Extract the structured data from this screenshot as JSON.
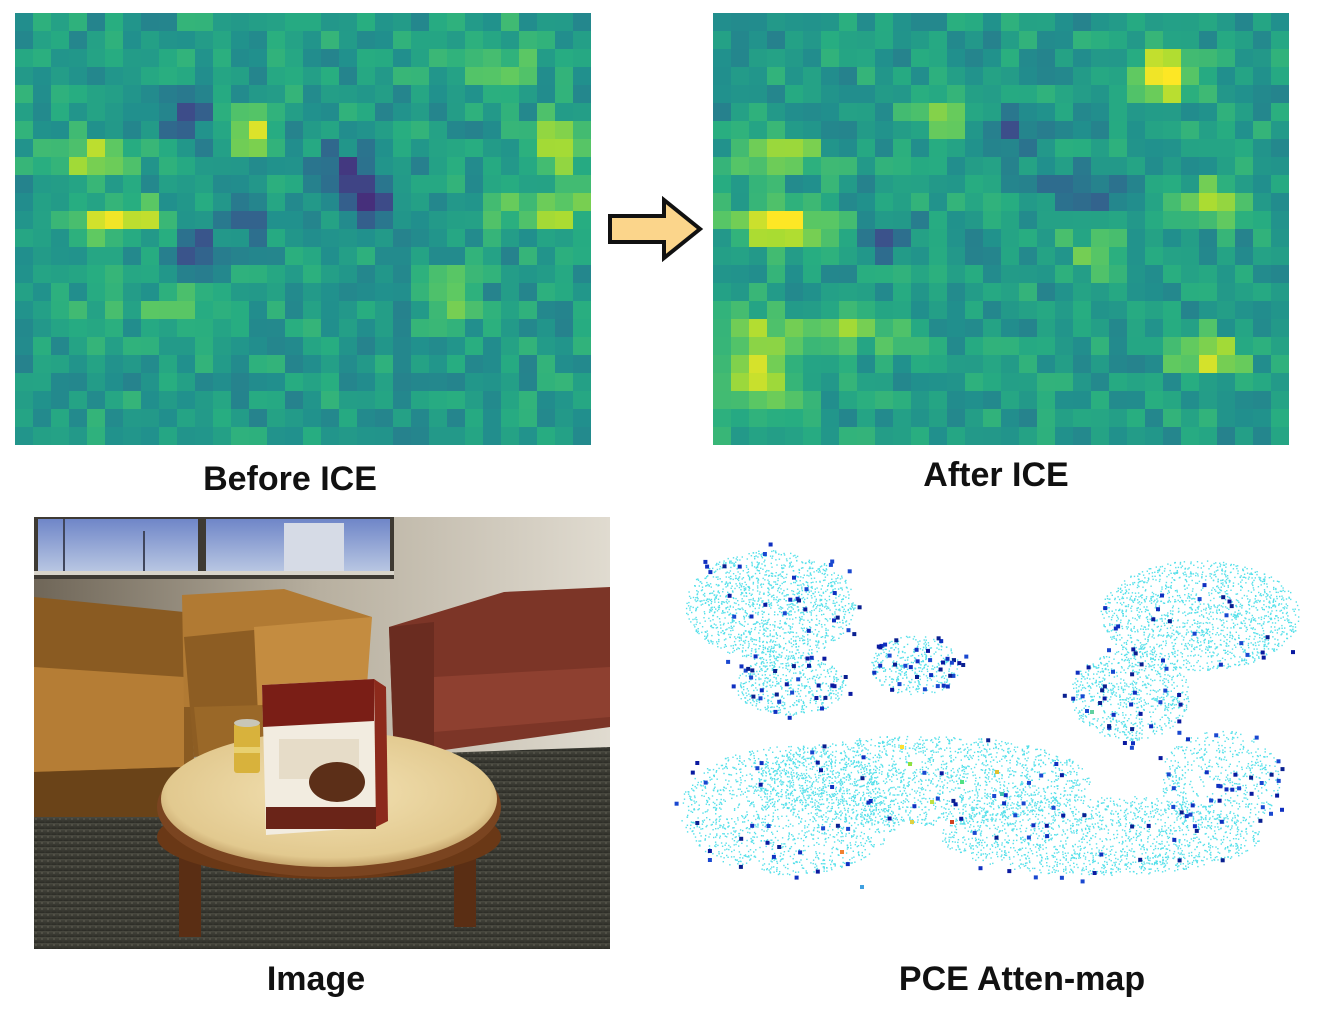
{
  "labels": {
    "before": "Before ICE",
    "after": "After ICE",
    "image": "Image",
    "pce": "PCE Atten-map"
  },
  "colors": {
    "arrow_fill": "#fbd58b",
    "arrow_stroke": "#111111",
    "point_base": "#55e0ea",
    "attention_low": "#1020a0",
    "attention_high": "#d03020"
  },
  "heatmap": {
    "colormap": "viridis",
    "rows": 24,
    "cols": 32
  }
}
